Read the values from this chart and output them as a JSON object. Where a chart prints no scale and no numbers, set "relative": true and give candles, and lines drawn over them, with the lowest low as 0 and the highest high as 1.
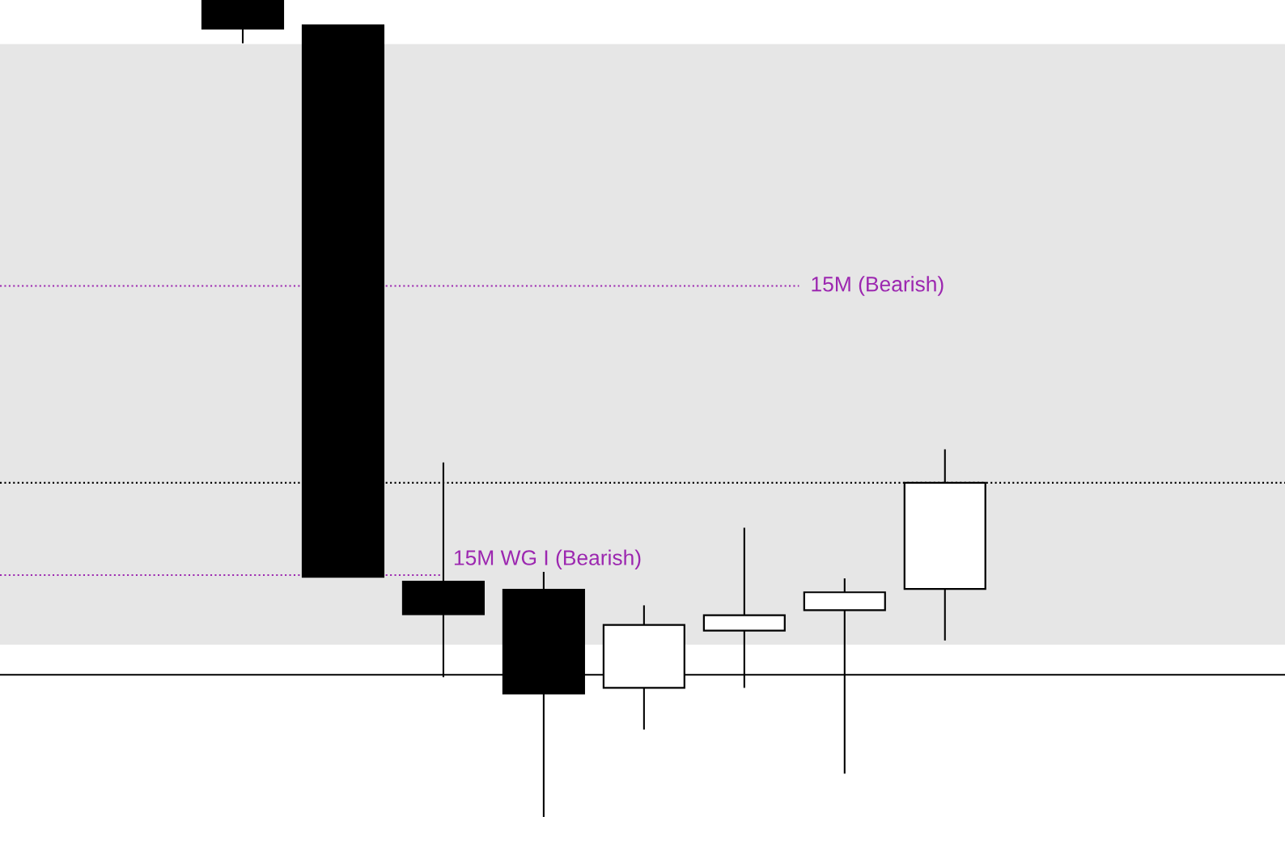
{
  "chart_data": {
    "type": "candlestick",
    "relative": true,
    "categories": [
      null,
      null,
      null,
      null,
      null,
      null,
      null,
      null
    ],
    "ohlc": [
      [
        1.0,
        1.0,
        0.947,
        0.965
      ],
      [
        0.969,
        0.969,
        0.294,
        0.294
      ],
      [
        0.288,
        0.434,
        0.171,
        0.248
      ],
      [
        0.278,
        0.3,
        0.0,
        0.151
      ],
      [
        0.158,
        0.259,
        0.107,
        0.235
      ],
      [
        0.228,
        0.354,
        0.158,
        0.247
      ],
      [
        0.253,
        0.292,
        0.053,
        0.275
      ],
      [
        0.279,
        0.45,
        0.216,
        0.409
      ]
    ],
    "color": "#000000",
    "colors": [
      "#000000",
      "#000000",
      "#000000",
      "#000000",
      "#ffffff",
      "#ffffff",
      "#ffffff",
      "#ffffff"
    ],
    "bands": [
      {
        "axis": "y",
        "from": 0.354,
        "to": 0.946,
        "color": "#e6e6e6"
      },
      {
        "axis": "y",
        "from": 0.211,
        "to": 0.385,
        "color": "#e6e6e6"
      }
    ],
    "ref_lines": [
      {
        "axis": "y",
        "value": 0.65,
        "label": "15M (Bearish)",
        "color": "#9c27b0",
        "line_style": "dotted"
      },
      {
        "axis": "y",
        "value": 0.296,
        "label": "15M WG I (Bearish)",
        "color": "#9c27b0",
        "line_style": "dotted"
      },
      {
        "axis": "y",
        "value": 0.409,
        "color": "#000000",
        "line_style": "dotted"
      },
      {
        "axis": "y",
        "value": 0.174,
        "color": "#000000",
        "line_style": "solid"
      }
    ],
    "tick_labels": false
  }
}
